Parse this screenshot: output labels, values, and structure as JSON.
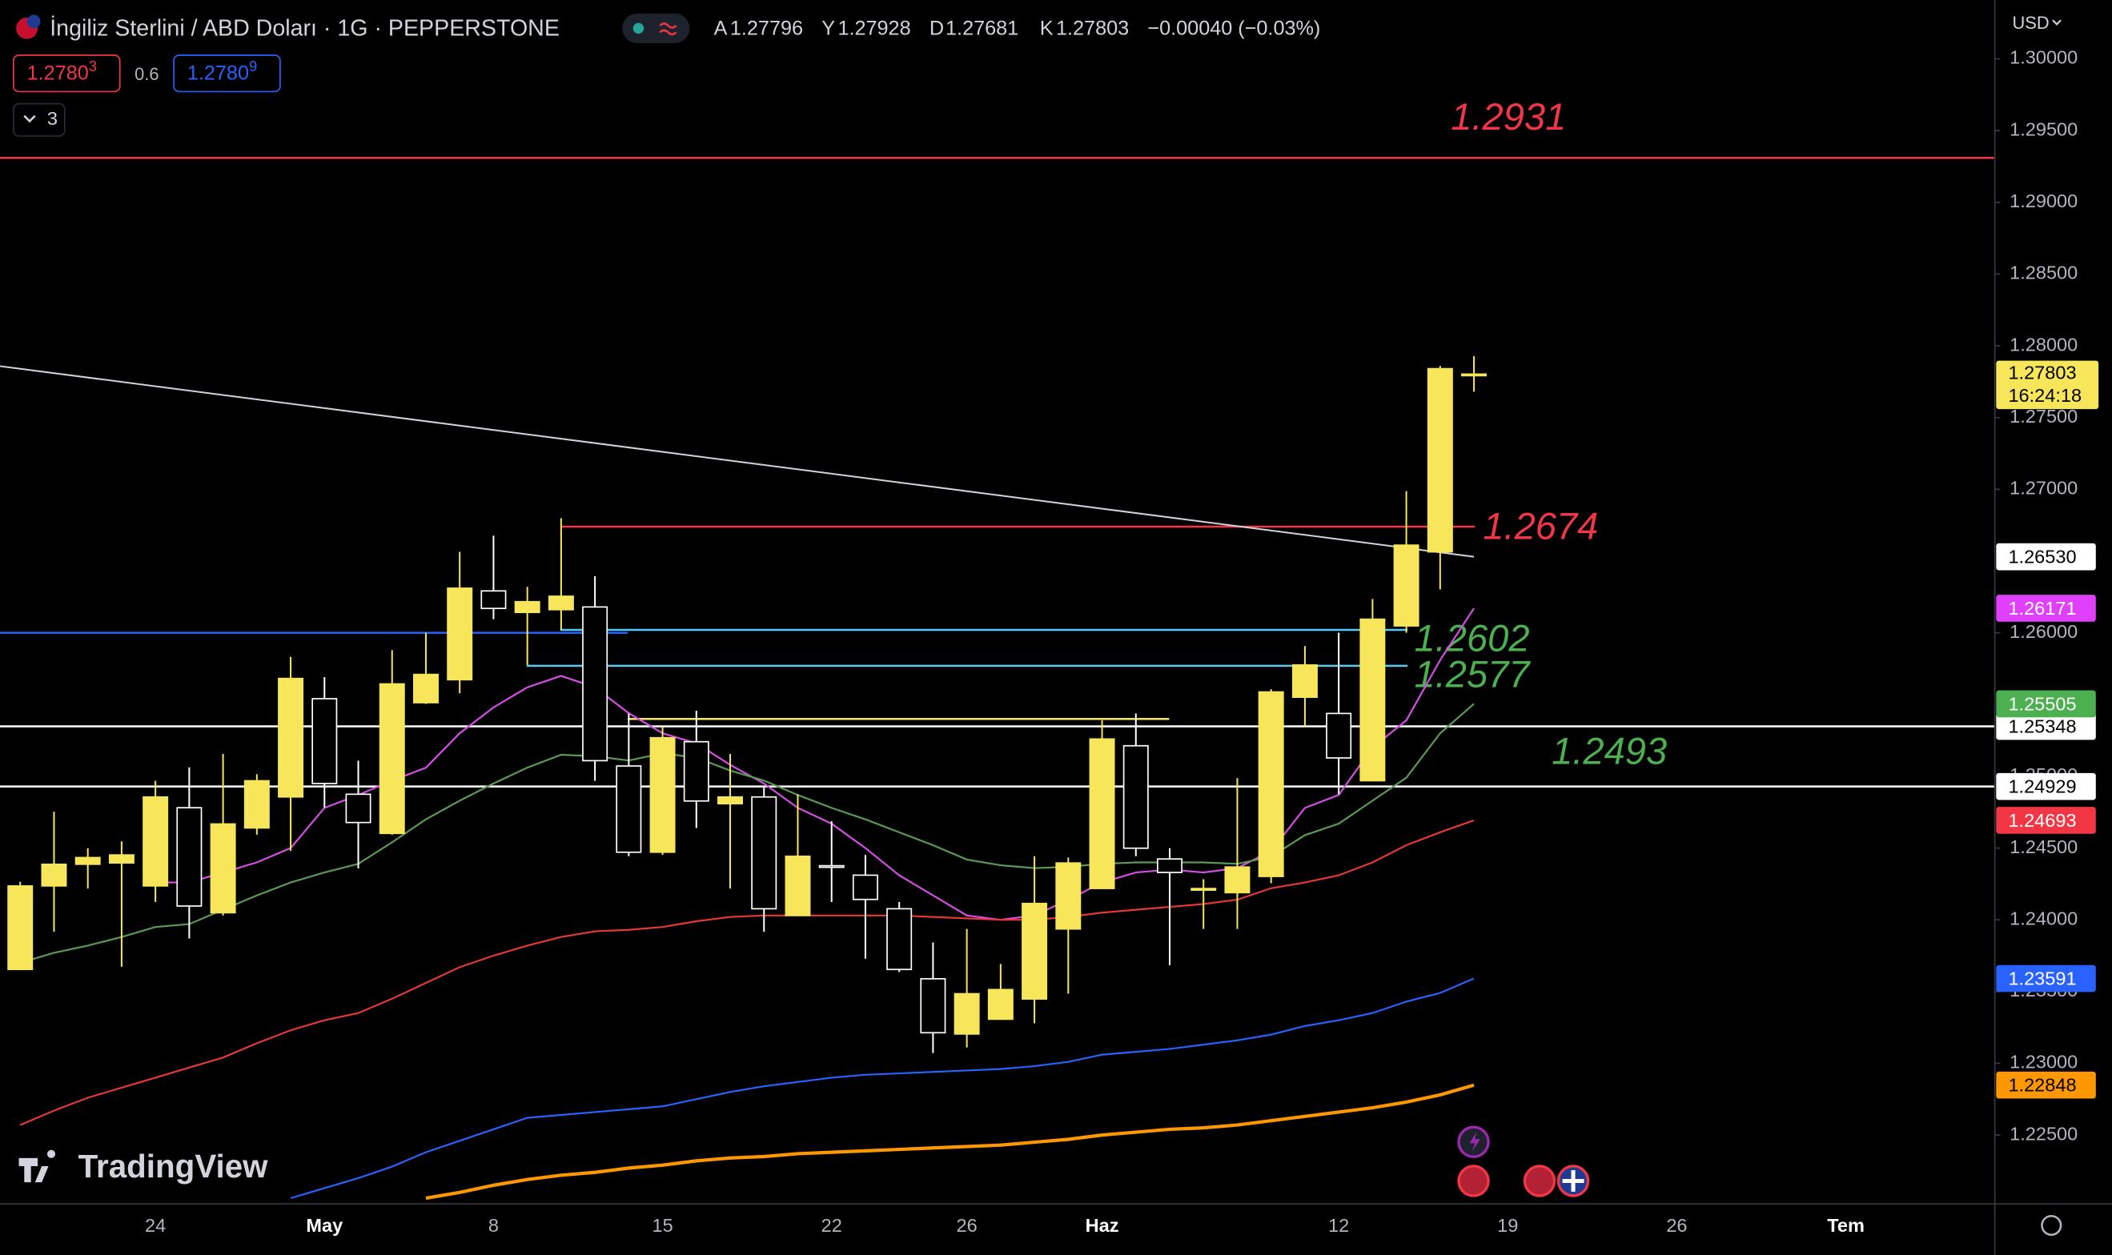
{
  "chart_data": {
    "type": "candlestick",
    "title": "İngiliz Sterlini / ABD Doları · 1G · PEPPERSTONE",
    "ohlc_labels": [
      "A",
      "Y",
      "D",
      "K"
    ],
    "change": "−0.00040 (−0.03%)",
    "trade": {
      "sell_main": "1.2780",
      "sell_last": "3",
      "spread": 0.6,
      "buy_main": "1.2780",
      "buy_last": "9"
    },
    "indicator_count": 3,
    "currency": "USD",
    "countdown": "16:24:18",
    "watermark": "TradingView",
    "ylim": [
      1.2203,
      1.3041
    ],
    "yticks": [
      {
        "value": 1.3,
        "label": "1.30000"
      },
      {
        "value": 1.295,
        "label": "1.29500"
      },
      {
        "value": 1.29,
        "label": "1.29000"
      },
      {
        "value": 1.285,
        "label": "1.28500"
      },
      {
        "value": 1.28,
        "label": "1.28000"
      },
      {
        "value": 1.275,
        "label": "1.27500"
      },
      {
        "value": 1.27,
        "label": "1.27000"
      },
      {
        "value": 1.26,
        "label": "1.26000"
      },
      {
        "value": 1.25,
        "label": "1.25000"
      },
      {
        "value": 1.245,
        "label": "1.24500"
      },
      {
        "value": 1.24,
        "label": "1.24000"
      },
      {
        "value": 1.235,
        "label": "1.23500"
      },
      {
        "value": 1.23,
        "label": "1.23000"
      },
      {
        "value": 1.225,
        "label": "1.22500"
      }
    ],
    "categories": [
      null,
      null,
      null,
      null,
      "24",
      null,
      null,
      null,
      null,
      "May",
      null,
      null,
      null,
      null,
      "8",
      null,
      null,
      null,
      null,
      "15",
      null,
      null,
      null,
      null,
      "22",
      null,
      null,
      null,
      "26",
      null,
      null,
      null,
      "Haz",
      null,
      null,
      null,
      null,
      null,
      null,
      "12",
      null,
      null,
      null,
      null,
      "19",
      null,
      null,
      null,
      null,
      "26",
      null,
      null,
      null,
      null,
      "Tem"
    ],
    "up_color": "#f7e55a",
    "down_color": "#ffffff",
    "candles": {
      "open": [
        1.23654,
        1.24236,
        1.24387,
        1.24396,
        1.24236,
        1.24781,
        1.24049,
        1.2464,
        1.24856,
        1.25541,
        1.24875,
        1.24602,
        1.25513,
        1.25673,
        1.26292,
        1.26142,
        1.26161,
        1.2618,
        1.25072,
        1.24471,
        1.25241,
        1.24809,
        1.24856,
        1.2403,
        1.24377,
        1.24311,
        1.24077,
        1.23589,
        1.23204,
        1.23307,
        1.23448,
        1.23936,
        1.24218,
        1.25213,
        1.24424,
        1.24209,
        1.24189,
        1.24302,
        1.25551,
        1.25438,
        1.24969,
        1.26048,
        1.26564,
        1.27796,
        null,
        null,
        null,
        null,
        null,
        null,
        null,
        null,
        null,
        null,
        null
      ],
      "high": [
        1.24265,
        1.24753,
        1.24499,
        1.24546,
        1.24969,
        1.25062,
        1.25156,
        1.25015,
        1.25832,
        1.25691,
        1.25109,
        1.25879,
        1.26001,
        1.26564,
        1.26677,
        1.2632,
        1.26799,
        1.26395,
        1.25438,
        1.25344,
        1.25457,
        1.25156,
        1.24922,
        1.24875,
        1.24687,
        1.24452,
        1.24124,
        1.23842,
        1.23936,
        1.23692,
        1.24443,
        1.24434,
        1.25391,
        1.25438,
        1.24499,
        1.24283,
        1.24987,
        1.25607,
        1.25907,
        1.26001,
        1.26236,
        1.26987,
        1.2786,
        1.27928,
        null,
        null,
        null,
        null,
        null,
        null,
        null,
        null,
        null,
        null,
        null
      ],
      "low": [
        1.23654,
        1.23917,
        1.24218,
        1.23673,
        1.24124,
        1.2387,
        1.2403,
        1.24593,
        1.2448,
        1.24781,
        1.24358,
        1.24593,
        1.25504,
        1.25579,
        1.26095,
        1.25776,
        1.2602,
        1.24969,
        1.24443,
        1.24452,
        1.2464,
        1.24218,
        1.23917,
        1.2403,
        1.24124,
        1.23729,
        1.23636,
        1.23072,
        1.2311,
        1.23307,
        1.23279,
        1.23485,
        1.24218,
        1.24443,
        1.23683,
        1.23936,
        1.23936,
        1.24255,
        1.25344,
        1.24875,
        1.24969,
        1.26001,
        1.26302,
        1.27681,
        null,
        null,
        null,
        null,
        null,
        null,
        null,
        null,
        null,
        null,
        null
      ],
      "close": [
        1.24236,
        1.24387,
        1.24434,
        1.24452,
        1.24856,
        1.24096,
        1.24668,
        1.24969,
        1.25682,
        1.2495,
        1.24678,
        1.25644,
        1.2571,
        1.26311,
        1.2617,
        1.26217,
        1.26255,
        1.25109,
        1.24471,
        1.25269,
        1.24828,
        1.24856,
        1.24077,
        1.24443,
        1.24368,
        1.24142,
        1.23654,
        1.23213,
        1.23485,
        1.23514,
        1.24114,
        1.24396,
        1.2526,
        1.24499,
        1.2433,
        1.24218,
        1.24368,
        1.25588,
        1.25776,
        1.25128,
        1.26095,
        1.26611,
        1.27841,
        1.27803,
        null,
        null,
        null,
        null,
        null,
        null,
        null,
        null,
        null,
        null,
        null
      ]
    },
    "series": [
      {
        "color": "#d64ee6",
        "tag_color": "#e040fb",
        "values": [
          null,
          null,
          null,
          null,
          1.2426,
          1.2426,
          1.2433,
          1.244,
          1.245,
          1.2478,
          1.2487,
          1.2497,
          1.2506,
          1.253,
          1.2548,
          1.2562,
          1.257,
          1.2562,
          1.2544,
          1.253,
          1.2523,
          1.2508,
          1.2495,
          1.2478,
          1.2467,
          1.245,
          1.2431,
          1.2417,
          1.2403,
          1.24,
          1.2403,
          1.2414,
          1.2426,
          1.2433,
          1.2435,
          1.2433,
          1.2436,
          1.2448,
          1.2478,
          1.2487,
          1.252,
          1.2539,
          1.2581,
          1.26171,
          null,
          null,
          null,
          null,
          null,
          null,
          null,
          null,
          null,
          null,
          null
        ]
      },
      {
        "color": "#5b9a54",
        "tag_color": "#4caf50",
        "values": [
          1.237,
          1.2377,
          1.2382,
          1.2388,
          1.2395,
          1.2397,
          1.2407,
          1.2417,
          1.2426,
          1.2433,
          1.2439,
          1.2454,
          1.247,
          1.2483,
          1.2495,
          1.2506,
          1.2515,
          1.2514,
          1.2511,
          1.2516,
          1.2513,
          1.2504,
          1.2497,
          1.2487,
          1.2478,
          1.247,
          1.2461,
          1.2452,
          1.2442,
          1.2438,
          1.2436,
          1.2437,
          1.2439,
          1.244,
          1.244,
          1.244,
          1.2439,
          1.2444,
          1.2459,
          1.2467,
          1.2483,
          1.2499,
          1.253,
          1.25505,
          null,
          null,
          null,
          null,
          null,
          null,
          null,
          null,
          null,
          null,
          null
        ]
      },
      {
        "color": "#e53935",
        "tag_color": "#f23645",
        "values": [
          1.2257,
          1.2267,
          1.2276,
          1.2283,
          1.229,
          1.2297,
          1.2304,
          1.2314,
          1.2323,
          1.233,
          1.2335,
          1.2345,
          1.2356,
          1.2367,
          1.2375,
          1.2382,
          1.2388,
          1.2392,
          1.2393,
          1.2395,
          1.2399,
          1.2402,
          1.2403,
          1.2403,
          1.2403,
          1.2403,
          1.2403,
          1.2402,
          1.2401,
          1.24,
          1.24,
          1.2402,
          1.2405,
          1.2407,
          1.2409,
          1.2411,
          1.2414,
          1.2422,
          1.2426,
          1.2431,
          1.244,
          1.2452,
          1.2461,
          1.24693,
          null,
          null,
          null,
          null,
          null,
          null,
          null,
          null,
          null,
          null,
          null
        ]
      },
      {
        "color": "#2962ff",
        "tag_color": "#2962ff",
        "values": [
          null,
          null,
          null,
          null,
          null,
          null,
          null,
          null,
          1.2206,
          1.2213,
          1.222,
          1.2228,
          1.2238,
          1.2246,
          1.2254,
          1.2262,
          1.2264,
          1.2266,
          1.2268,
          1.227,
          1.2275,
          1.228,
          1.2284,
          1.2287,
          1.229,
          1.2292,
          1.2293,
          1.2294,
          1.2295,
          1.2296,
          1.2298,
          1.2301,
          1.2306,
          1.2308,
          1.231,
          1.2313,
          1.2316,
          1.232,
          1.2326,
          1.233,
          1.2335,
          1.2343,
          1.2349,
          1.23591,
          null,
          null,
          null,
          null,
          null,
          null,
          null,
          null,
          null,
          null,
          null
        ]
      },
      {
        "color": "#ff9800",
        "tag_color": "#ff9800",
        "values": [
          null,
          null,
          null,
          null,
          null,
          null,
          null,
          null,
          null,
          null,
          null,
          null,
          1.2206,
          1.221,
          1.2215,
          1.2219,
          1.2222,
          1.2224,
          1.2227,
          1.2229,
          1.2232,
          1.2234,
          1.2235,
          1.2237,
          1.2238,
          1.2239,
          1.224,
          1.2241,
          1.2242,
          1.2243,
          1.2245,
          1.2247,
          1.225,
          1.2252,
          1.2254,
          1.2255,
          1.2257,
          1.226,
          1.2263,
          1.2266,
          1.2269,
          1.2273,
          1.2278,
          1.22848,
          null,
          null,
          null,
          null,
          null,
          null,
          null,
          null,
          null,
          null,
          null
        ]
      }
    ],
    "trendline": {
      "color": "#d1d4dc",
      "start": 1.2784,
      "end": 1.2653,
      "end_label": "1.26530"
    },
    "levels": [
      {
        "value": 1.2931,
        "color": "#f23645",
        "label_color": "#f23645"
      },
      {
        "value": 1.2674,
        "color": "#f23645",
        "label_color": "#f23645"
      },
      {
        "value": 1.2602,
        "color": "#5ac8f5",
        "label_color": "#4caf50"
      },
      {
        "value": 1.2577,
        "color": "#5ac8f5",
        "label_color": "#4caf50"
      },
      {
        "value": 1.254,
        "color": "#f7e55a"
      },
      {
        "value": 1.26,
        "color": "#2962ff"
      },
      {
        "value": 1.25348,
        "color": "#ffffff",
        "tag": true
      },
      {
        "value": 1.24929,
        "color": "#ffffff",
        "tag": true
      }
    ],
    "notes": [
      {
        "value": 1.2493,
        "color": "#4caf50"
      }
    ]
  }
}
